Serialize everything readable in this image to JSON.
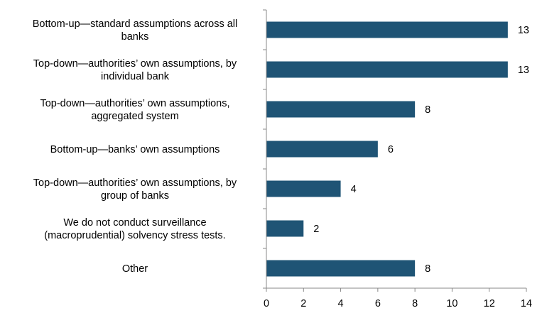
{
  "chart_data": {
    "type": "bar",
    "orientation": "horizontal",
    "title": "",
    "xlabel": "",
    "ylabel": "",
    "categories": [
      [
        "Bottom-up—standard assumptions across all",
        "banks"
      ],
      [
        "Top-down—authorities’ own assumptions, by",
        "individual bank"
      ],
      [
        "Top-down—authorities’ own assumptions,",
        "aggregated system"
      ],
      [
        "Bottom-up—banks’ own assumptions"
      ],
      [
        "Top-down—authorities’ own assumptions, by",
        "group of banks"
      ],
      [
        "We do not conduct surveillance",
        "(macroprudential) solvency stress tests."
      ],
      [
        "Other"
      ]
    ],
    "values": [
      13,
      13,
      8,
      6,
      4,
      2,
      8
    ],
    "xlim": [
      0,
      14
    ],
    "xticks": [
      0,
      2,
      4,
      6,
      8,
      10,
      12,
      14
    ],
    "grid": false,
    "legend": "none",
    "bar_color": "#1f5475"
  }
}
